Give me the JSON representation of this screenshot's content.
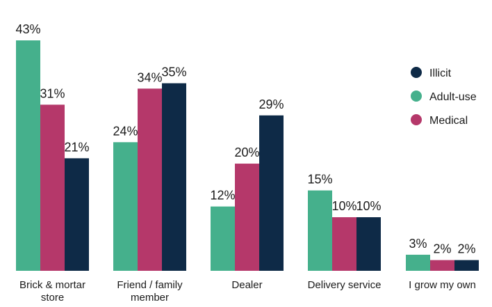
{
  "chart_data": {
    "type": "bar",
    "categories": [
      [
        "Brick & mortar",
        "store"
      ],
      [
        "Friend / family",
        "member"
      ],
      [
        "Dealer"
      ],
      [
        "Delivery service"
      ],
      [
        "I grow my own"
      ]
    ],
    "series": [
      {
        "name": "Adult-use",
        "color": "#45b08c",
        "values": [
          43,
          24,
          12,
          15,
          3
        ]
      },
      {
        "name": "Medical",
        "color": "#b5386a",
        "values": [
          31,
          34,
          20,
          10,
          2
        ]
      },
      {
        "name": "Illicit",
        "color": "#0e2a47",
        "values": [
          21,
          35,
          29,
          10,
          2
        ]
      }
    ],
    "value_suffix": "%",
    "legend_order": [
      "Illicit",
      "Adult-use",
      "Medical"
    ],
    "legend_position": "top-right",
    "ylim": [
      0,
      43
    ],
    "grid": false,
    "title": "",
    "xlabel": "",
    "ylabel": ""
  }
}
